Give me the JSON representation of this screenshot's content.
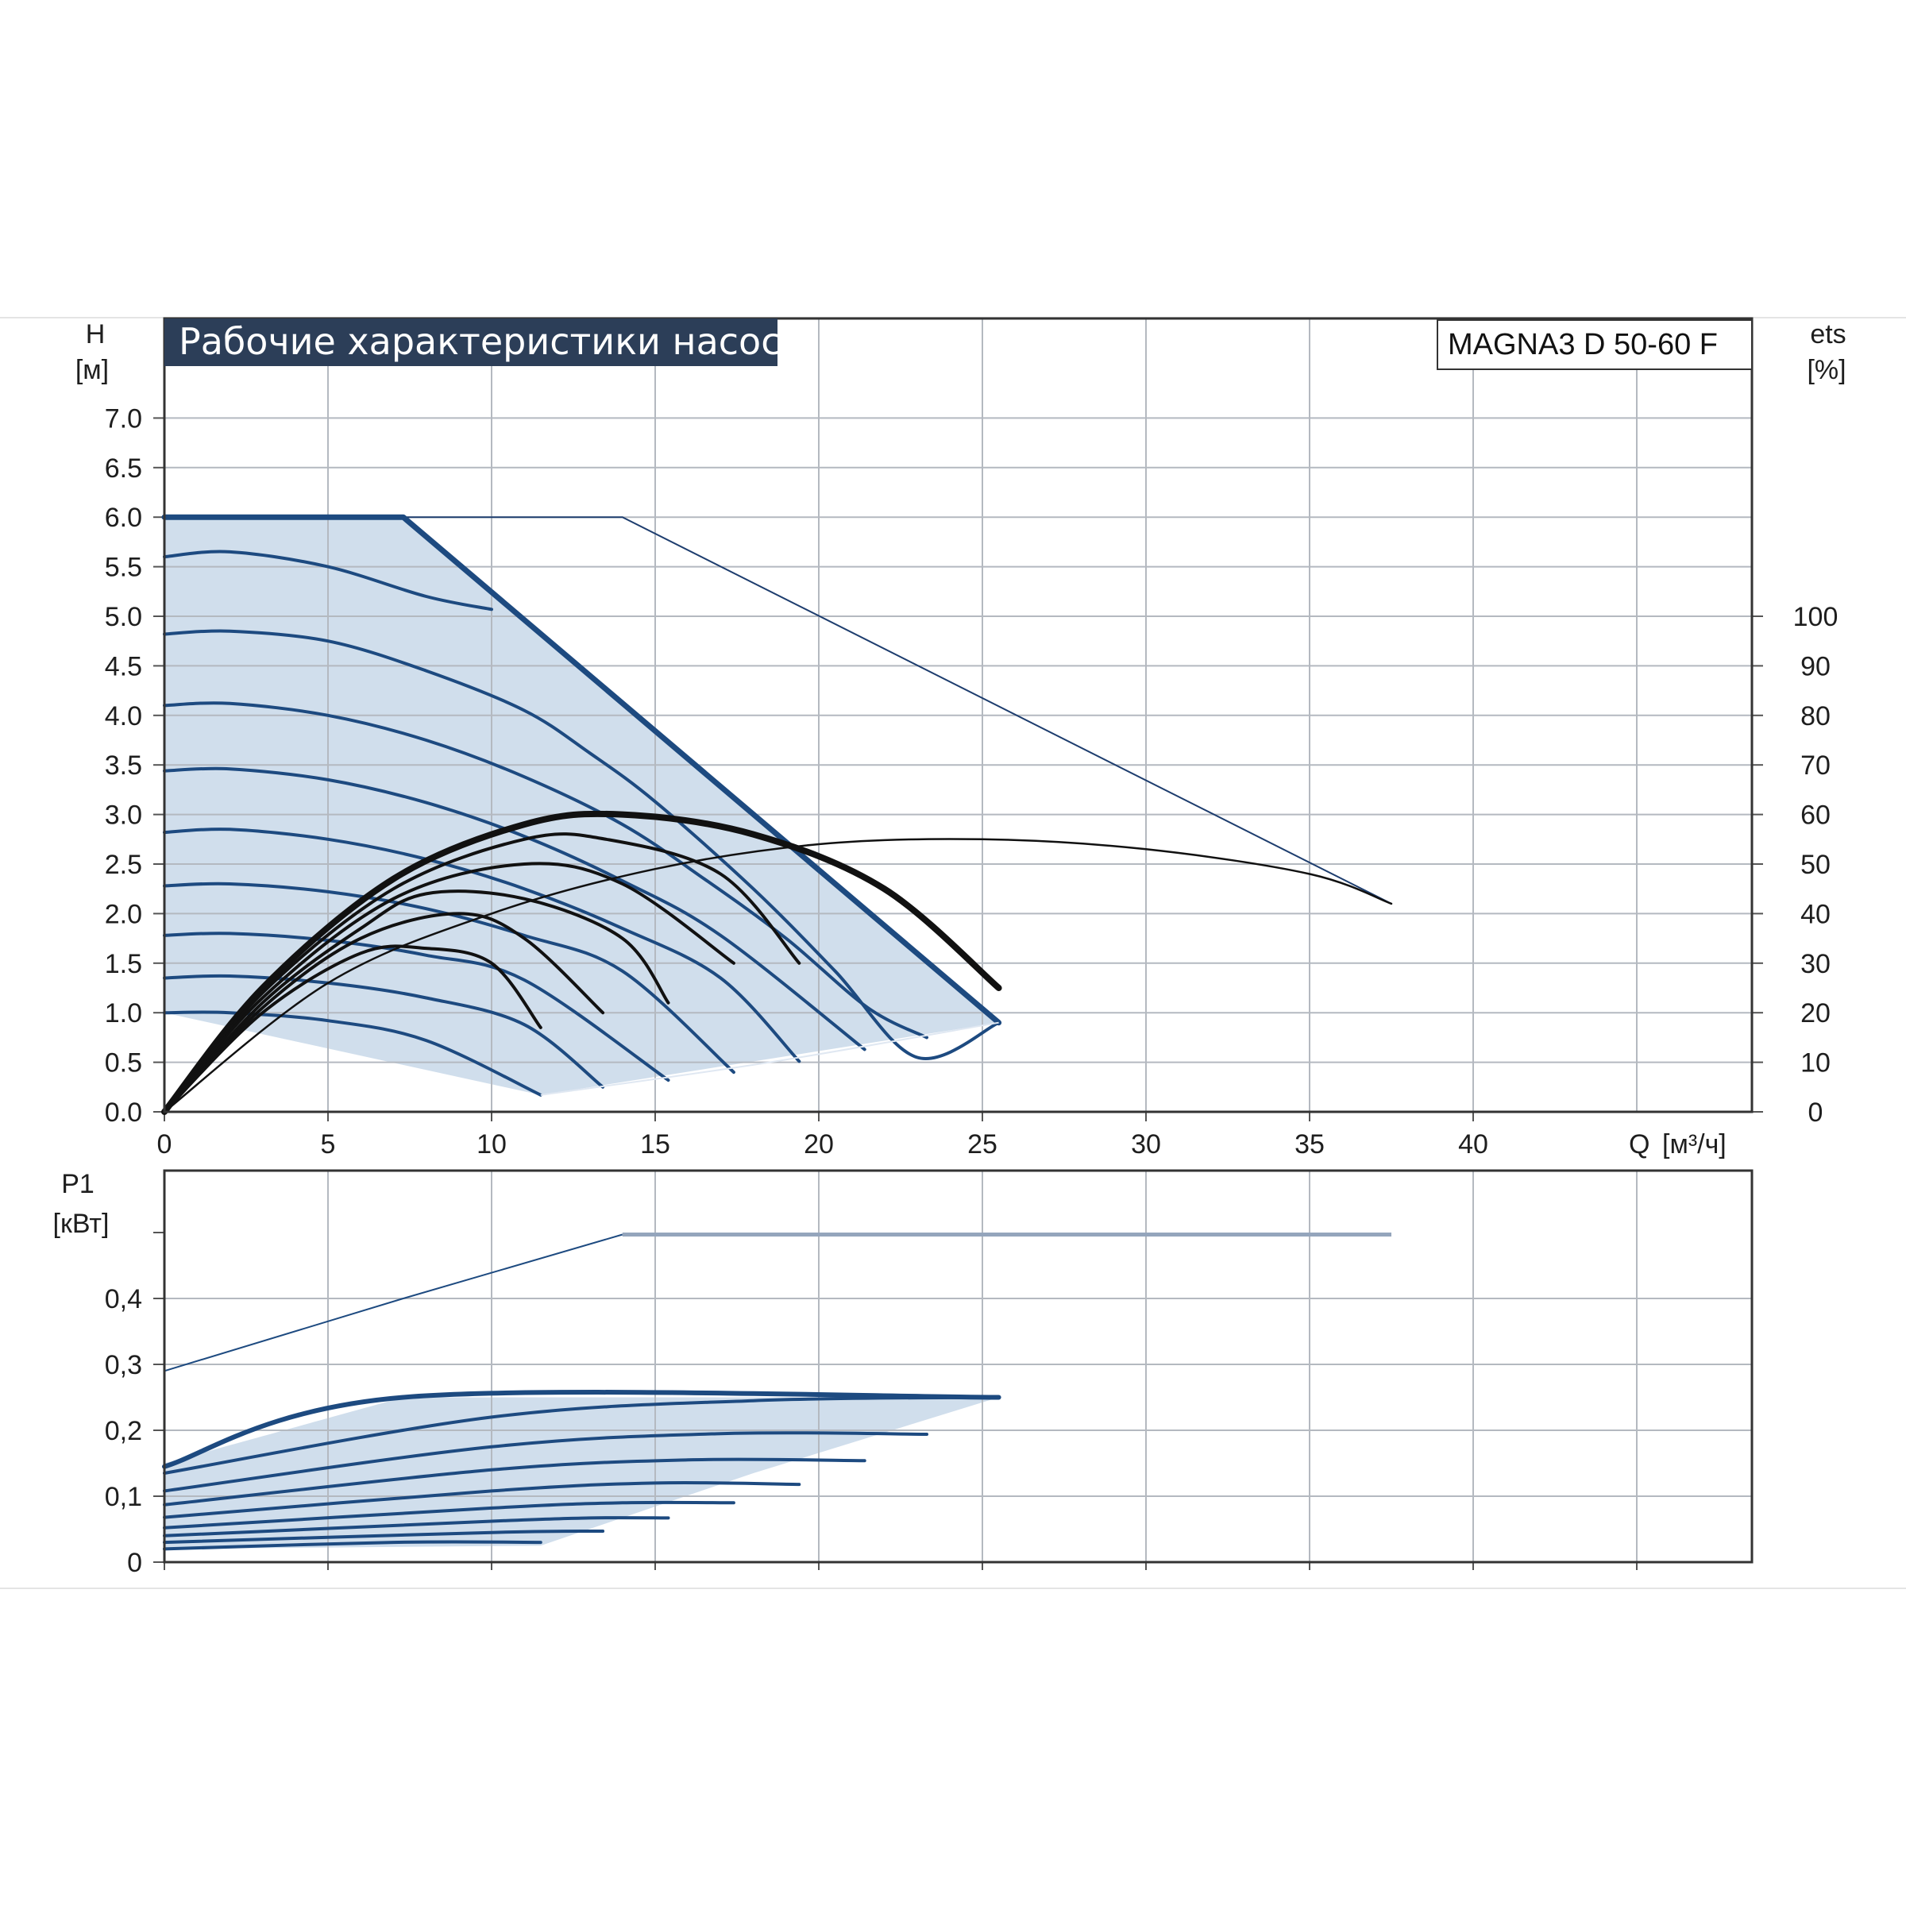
{
  "chart_data": [
    {
      "type": "line",
      "title": "Рабочие характеристики насоса",
      "model": "MAGNA3 D 50-60 F",
      "ylabel": "H",
      "yunit": "[м]",
      "y2label": "ets",
      "y2unit": "[%]",
      "xlabel": "Q",
      "xunit": "[м³/ч]",
      "xlim": [
        0,
        48.5
      ],
      "ylim": [
        0,
        7.5
      ],
      "y2lim": [
        0,
        100
      ],
      "x_ticks": [
        "0",
        "5",
        "10",
        "15",
        "20",
        "25",
        "30",
        "35",
        "40"
      ],
      "y_ticks": [
        "0.0",
        "0.5",
        "1.0",
        "1.5",
        "2.0",
        "2.5",
        "3.0",
        "3.5",
        "4.0",
        "4.5",
        "5.0",
        "5.5",
        "6.0",
        "6.5",
        "7.0"
      ],
      "y2_ticks": [
        "0",
        "10",
        "20",
        "30",
        "40",
        "50",
        "60",
        "70",
        "80",
        "90",
        "100"
      ],
      "grid": true,
      "colors": {
        "curve": "#1d4a80",
        "fill": "#d0deec",
        "efficiency": "#111111",
        "title_bg": "#2c3e58",
        "grid": "#b4b9c0"
      },
      "operating_range": [
        [
          0,
          6.0
        ],
        [
          7.3,
          6.0
        ],
        [
          25.5,
          0.9
        ],
        [
          11.5,
          0.17
        ],
        [
          0,
          1.0
        ]
      ],
      "max_curve_2pump": [
        [
          0,
          6.0
        ],
        [
          14,
          6.0
        ],
        [
          37.5,
          2.1
        ]
      ],
      "series": [
        {
          "values": [
            [
              0,
              5.6
            ],
            [
              2,
              5.65
            ],
            [
              5,
              5.5
            ],
            [
              8,
              5.2
            ],
            [
              10,
              5.07
            ]
          ]
        },
        {
          "values": [
            [
              0,
              4.82
            ],
            [
              2,
              4.85
            ],
            [
              5,
              4.75
            ],
            [
              8,
              4.45
            ],
            [
              11,
              4.05
            ],
            [
              13,
              3.62
            ],
            [
              15,
              3.13
            ],
            [
              18,
              2.25
            ],
            [
              20.5,
              1.42
            ],
            [
              23,
              0.55
            ],
            [
              25.5,
              0.9
            ]
          ]
        },
        {
          "values": [
            [
              0,
              4.1
            ],
            [
              2,
              4.12
            ],
            [
              5,
              4.0
            ],
            [
              8,
              3.75
            ],
            [
              11,
              3.38
            ],
            [
              14,
              2.9
            ],
            [
              16.5,
              2.35
            ],
            [
              19,
              1.75
            ],
            [
              21.5,
              1.05
            ],
            [
              23.3,
              0.75
            ]
          ]
        },
        {
          "values": [
            [
              0,
              3.44
            ],
            [
              2,
              3.46
            ],
            [
              5,
              3.35
            ],
            [
              8,
              3.12
            ],
            [
              11,
              2.78
            ],
            [
              14,
              2.33
            ],
            [
              17,
              1.78
            ],
            [
              21.4,
              0.63
            ]
          ]
        },
        {
          "values": [
            [
              0,
              2.82
            ],
            [
              2,
              2.85
            ],
            [
              5,
              2.75
            ],
            [
              8,
              2.55
            ],
            [
              11,
              2.25
            ],
            [
              14,
              1.85
            ],
            [
              17,
              1.35
            ],
            [
              19.4,
              0.51
            ]
          ]
        },
        {
          "values": [
            [
              0,
              2.28
            ],
            [
              2,
              2.3
            ],
            [
              5,
              2.22
            ],
            [
              8,
              2.05
            ],
            [
              11,
              1.78
            ],
            [
              14,
              1.42
            ],
            [
              17.4,
              0.4
            ]
          ]
        },
        {
          "values": [
            [
              0,
              1.78
            ],
            [
              2,
              1.8
            ],
            [
              5,
              1.73
            ],
            [
              8,
              1.58
            ],
            [
              11,
              1.33
            ],
            [
              15.4,
              0.32
            ]
          ]
        },
        {
          "values": [
            [
              0,
              1.35
            ],
            [
              2,
              1.37
            ],
            [
              5,
              1.3
            ],
            [
              8,
              1.15
            ],
            [
              11,
              0.88
            ],
            [
              13.4,
              0.25
            ]
          ]
        },
        {
          "values": [
            [
              0,
              1.0
            ],
            [
              2,
              1.0
            ],
            [
              5,
              0.92
            ],
            [
              8,
              0.72
            ],
            [
              11.5,
              0.17
            ]
          ]
        }
      ],
      "efficiency_curves": [
        {
          "values": [
            [
              0,
              0
            ],
            [
              3,
              25
            ],
            [
              7,
              47
            ],
            [
              11,
              58
            ],
            [
              14,
              60
            ],
            [
              18,
              56
            ],
            [
              22,
              45
            ],
            [
              25.5,
              25
            ]
          ]
        },
        {
          "values": [
            [
              0,
              0
            ],
            [
              3,
              24
            ],
            [
              7,
              45
            ],
            [
              11,
              55
            ],
            [
              13.5,
              55
            ],
            [
              17,
              48
            ],
            [
              19.4,
              30
            ]
          ]
        },
        {
          "values": [
            [
              0,
              0
            ],
            [
              3,
              23
            ],
            [
              7,
              43
            ],
            [
              11,
              50
            ],
            [
              14,
              46
            ],
            [
              17.4,
              30
            ]
          ]
        },
        {
          "values": [
            [
              0,
              0
            ],
            [
              3,
              22
            ],
            [
              6,
              37
            ],
            [
              8,
              44
            ],
            [
              11,
              43
            ],
            [
              14,
              35
            ],
            [
              15.4,
              22
            ]
          ]
        },
        {
          "values": [
            [
              0,
              0
            ],
            [
              3,
              21
            ],
            [
              6,
              35
            ],
            [
              9,
              40
            ],
            [
              11,
              35
            ],
            [
              13.4,
              20
            ]
          ]
        },
        {
          "values": [
            [
              0,
              0
            ],
            [
              3,
              20
            ],
            [
              6,
              32
            ],
            [
              8,
              33
            ],
            [
              10,
              30
            ],
            [
              11.5,
              17
            ]
          ]
        },
        {
          "values": [
            [
              0,
              0
            ],
            [
              5,
              26
            ],
            [
              10,
              40
            ],
            [
              15,
              49
            ],
            [
              20,
              54
            ],
            [
              25,
              55
            ],
            [
              30,
              53
            ],
            [
              35,
              48
            ],
            [
              37.5,
              42
            ]
          ]
        }
      ]
    },
    {
      "type": "line",
      "ylabel": "P1",
      "yunit": "[кВт]",
      "xlim": [
        0,
        48.5
      ],
      "ylim": [
        0,
        0.55
      ],
      "y_ticks": [
        "0",
        "0,1",
        "0,2",
        "0,3",
        "0,4"
      ],
      "grid": true,
      "colors": {
        "curve": "#1d4a80",
        "fill": "#d0deec",
        "max2": "#1d4a80",
        "max2_flat": "#94a5bc"
      },
      "max_curve_2pump": [
        [
          0,
          0.29
        ],
        [
          7.3,
          0.4
        ],
        [
          14,
          0.497
        ]
      ],
      "max_curve_2pump_flat": [
        [
          14,
          0.497
        ],
        [
          37.5,
          0.497
        ]
      ],
      "operating_range": [
        [
          0,
          0.15
        ],
        [
          7.3,
          0.25
        ],
        [
          25.5,
          0.25
        ],
        [
          11.5,
          0.03
        ],
        [
          0,
          0.02
        ]
      ],
      "series": [
        {
          "values": [
            [
              0,
              0.145
            ],
            [
              7.3,
              0.25
            ],
            [
              25.5,
              0.25
            ]
          ]
        },
        {
          "values": [
            [
              0,
              0.135
            ],
            [
              10,
              0.22
            ],
            [
              18,
              0.245
            ],
            [
              25.5,
              0.25
            ]
          ]
        },
        {
          "values": [
            [
              0,
              0.108
            ],
            [
              10,
              0.175
            ],
            [
              17,
              0.195
            ],
            [
              23.3,
              0.194
            ]
          ]
        },
        {
          "values": [
            [
              0,
              0.087
            ],
            [
              10,
              0.14
            ],
            [
              16,
              0.155
            ],
            [
              21.4,
              0.154
            ]
          ]
        },
        {
          "values": [
            [
              0,
              0.068
            ],
            [
              10,
              0.108
            ],
            [
              15,
              0.12
            ],
            [
              19.4,
              0.118
            ]
          ]
        },
        {
          "values": [
            [
              0,
              0.052
            ],
            [
              10,
              0.082
            ],
            [
              14,
              0.09
            ],
            [
              17.4,
              0.09
            ]
          ]
        },
        {
          "values": [
            [
              0,
              0.04
            ],
            [
              10,
              0.062
            ],
            [
              13,
              0.067
            ],
            [
              15.4,
              0.067
            ]
          ]
        },
        {
          "values": [
            [
              0,
              0.03
            ],
            [
              10,
              0.045
            ],
            [
              13.4,
              0.047
            ]
          ]
        },
        {
          "values": [
            [
              0,
              0.02
            ],
            [
              7,
              0.03
            ],
            [
              11.5,
              0.03
            ]
          ]
        }
      ]
    }
  ]
}
